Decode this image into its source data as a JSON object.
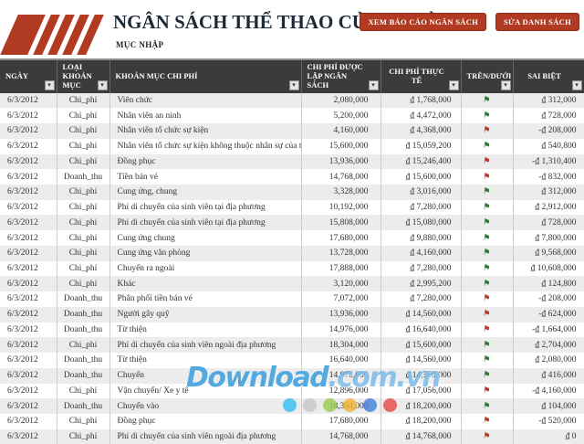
{
  "header": {
    "title": "NGÂN SÁCH THỂ THAO CỦA TRƯỜNG",
    "subtitle": "MỤC NHẬP",
    "view_report_button": "XEM BÁO CÁO NGÂN SÁCH",
    "edit_list_button": "SỬA DANH SÁCH"
  },
  "icons": {
    "filter_glyph": "▾",
    "flag_glyph": "⚑"
  },
  "colors": {
    "accent_red": "#b03a22",
    "table_header_bg": "#3b3b3b",
    "row_alt_bg": "#ececec",
    "flag_green": "#2e7d32",
    "flag_red": "#c0392b",
    "watermark_blue": "#3b9edd"
  },
  "table": {
    "columns": [
      {
        "key": "date",
        "label": "NGÀY"
      },
      {
        "key": "type",
        "label": "LOẠI KHOẢN MỤC"
      },
      {
        "key": "item",
        "label": "KHOẢN MỤC CHI PHÍ"
      },
      {
        "key": "budget",
        "label": "CHI PHÍ ĐƯỢC LẬP NGÂN SÁCH"
      },
      {
        "key": "actual",
        "label": "CHI PHÍ THỰC TẾ"
      },
      {
        "key": "flag",
        "label": "TRÊN/DƯỚI"
      },
      {
        "key": "diff",
        "label": "SAI BIỆT"
      }
    ],
    "rows": [
      {
        "date": "6/3/2012",
        "type": "Chi_phí",
        "item": "Viên chức",
        "budget": "2,080,000",
        "actual": "₫ 1,768,000",
        "flag": "up",
        "diff": "₫ 312,000"
      },
      {
        "date": "6/3/2012",
        "type": "Chi_phí",
        "item": "Nhân viên an ninh",
        "budget": "5,200,000",
        "actual": "₫ 4,472,000",
        "flag": "up",
        "diff": "₫ 728,000"
      },
      {
        "date": "6/3/2012",
        "type": "Chi_phí",
        "item": "Nhân viên tổ chức sự kiện",
        "budget": "4,160,000",
        "actual": "₫ 4,368,000",
        "flag": "down",
        "diff": "-₫ 208,000"
      },
      {
        "date": "6/3/2012",
        "type": "Chi_phí",
        "item": "Nhân viên tổ chức sự kiện không thuộc nhân sự của trường",
        "budget": "15,600,000",
        "actual": "₫ 15,059,200",
        "flag": "up",
        "diff": "₫ 540,800"
      },
      {
        "date": "6/3/2012",
        "type": "Chi_phí",
        "item": "Đồng phục",
        "budget": "13,936,000",
        "actual": "₫ 15,246,400",
        "flag": "down",
        "diff": "-₫ 1,310,400"
      },
      {
        "date": "6/3/2012",
        "type": "Doanh_thu",
        "item": "Tiền bán vé",
        "budget": "14,768,000",
        "actual": "₫ 15,600,000",
        "flag": "down",
        "diff": "-₫ 832,000"
      },
      {
        "date": "6/3/2012",
        "type": "Chi_phí",
        "item": "Cung ứng, chung",
        "budget": "3,328,000",
        "actual": "₫ 3,016,000",
        "flag": "up",
        "diff": "₫ 312,000"
      },
      {
        "date": "6/3/2012",
        "type": "Chi_phí",
        "item": "Phí di chuyển của sinh viên tại địa phương",
        "budget": "10,192,000",
        "actual": "₫ 7,280,000",
        "flag": "up",
        "diff": "₫ 2,912,000"
      },
      {
        "date": "6/3/2012",
        "type": "Chi_phí",
        "item": "Phí di chuyển của sinh viên tại địa phương",
        "budget": "15,808,000",
        "actual": "₫ 15,080,000",
        "flag": "up",
        "diff": "₫ 728,000"
      },
      {
        "date": "6/3/2012",
        "type": "Chi_phí",
        "item": "Cung ứng chung",
        "budget": "17,680,000",
        "actual": "₫ 9,880,000",
        "flag": "up",
        "diff": "₫ 7,800,000"
      },
      {
        "date": "6/3/2012",
        "type": "Chi_phí",
        "item": "Cung ứng văn phòng",
        "budget": "13,728,000",
        "actual": "₫ 4,160,000",
        "flag": "up",
        "diff": "₫ 9,568,000"
      },
      {
        "date": "6/3/2012",
        "type": "Chi_phí",
        "item": "Chuyển ra ngoài",
        "budget": "17,888,000",
        "actual": "₫ 7,280,000",
        "flag": "up",
        "diff": "₫ 10,608,000"
      },
      {
        "date": "6/3/2012",
        "type": "Chi_phí",
        "item": "Khác",
        "budget": "3,120,000",
        "actual": "₫ 2,995,200",
        "flag": "up",
        "diff": "₫ 124,800"
      },
      {
        "date": "6/3/2012",
        "type": "Doanh_thu",
        "item": "Phân phối tiền bán vé",
        "budget": "7,072,000",
        "actual": "₫ 7,280,000",
        "flag": "down",
        "diff": "-₫ 208,000"
      },
      {
        "date": "6/3/2012",
        "type": "Doanh_thu",
        "item": "Người gây quỹ",
        "budget": "13,936,000",
        "actual": "₫ 14,560,000",
        "flag": "down",
        "diff": "-₫ 624,000"
      },
      {
        "date": "6/3/2012",
        "type": "Doanh_thu",
        "item": "Từ thiện",
        "budget": "14,976,000",
        "actual": "₫ 16,640,000",
        "flag": "down",
        "diff": "-₫ 1,664,000"
      },
      {
        "date": "6/3/2012",
        "type": "Chi_phí",
        "item": "Phí di chuyển của sinh viên ngoài địa phương",
        "budget": "18,304,000",
        "actual": "₫ 15,600,000",
        "flag": "up",
        "diff": "₫ 2,704,000"
      },
      {
        "date": "6/3/2012",
        "type": "Doanh_thu",
        "item": "Từ thiện",
        "budget": "16,640,000",
        "actual": "₫ 14,560,000",
        "flag": "up",
        "diff": "₫ 2,080,000"
      },
      {
        "date": "6/3/2012",
        "type": "Doanh_thu",
        "item": "Chuyển",
        "budget": "14,976,000",
        "actual": "₫ 14,560,000",
        "flag": "up",
        "diff": "₫ 416,000"
      },
      {
        "date": "6/3/2012",
        "type": "Chi_phí",
        "item": "Vận chuyển/ Xe y tế",
        "budget": "12,896,000",
        "actual": "₫ 17,056,000",
        "flag": "down",
        "diff": "-₫ 4,160,000"
      },
      {
        "date": "6/3/2012",
        "type": "Doanh_thu",
        "item": "Chuyển vào",
        "budget": "18,304,000",
        "actual": "₫ 18,200,000",
        "flag": "up",
        "diff": "₫ 104,000"
      },
      {
        "date": "6/3/2012",
        "type": "Chi_phí",
        "item": "Đồng phục",
        "budget": "17,680,000",
        "actual": "₫ 18,200,000",
        "flag": "down",
        "diff": "-₫ 520,000"
      },
      {
        "date": "6/3/2012",
        "type": "Chi_phí",
        "item": "Phí di chuyển của sinh viên ngoài địa phương",
        "budget": "14,768,000",
        "actual": "₫ 14,768,000",
        "flag": "down",
        "diff": "₫ 0"
      }
    ]
  },
  "watermark": {
    "text": "Download",
    "suffix": ".com.vn",
    "dot_colors": [
      "#3ec1f0",
      "#c9c9c9",
      "#9ccb56",
      "#f2b63c",
      "#4a86d8",
      "#e8534e"
    ]
  }
}
